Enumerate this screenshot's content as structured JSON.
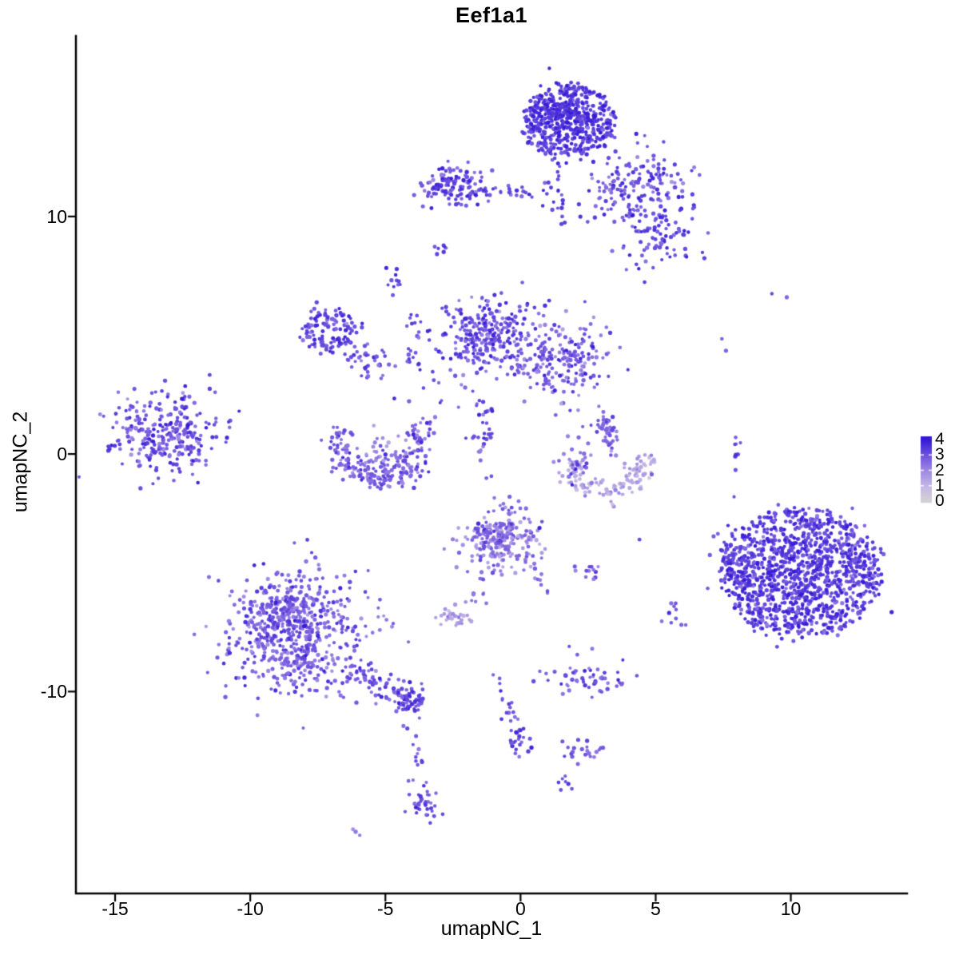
{
  "chart_data": {
    "type": "scatter",
    "title": "Eef1a1",
    "xlabel": "umapNC_1",
    "ylabel": "umapNC_2",
    "xlim": [
      -16.45,
      14.3
    ],
    "ylim": [
      -18.5,
      17.6
    ],
    "grid": false,
    "x_ticks": [
      {
        "value": -15,
        "label": "-15"
      },
      {
        "value": -10,
        "label": "-10"
      },
      {
        "value": -5,
        "label": "-5"
      },
      {
        "value": 0,
        "label": "0"
      },
      {
        "value": 5,
        "label": "5"
      },
      {
        "value": 10,
        "label": "10"
      }
    ],
    "y_ticks": [
      {
        "value": 10,
        "label": "10"
      },
      {
        "value": 0,
        "label": "0"
      },
      {
        "value": -10,
        "label": "-10"
      }
    ],
    "legend": {
      "position": "right",
      "labels": [
        "4",
        "3",
        "2",
        "1",
        "0"
      ],
      "values": [
        4,
        3,
        2,
        1,
        0
      ],
      "description": "expression colorbar, light grey (0) to blue (4)"
    },
    "palette": {
      "low": "#d3d3d3",
      "high": "#3519d6",
      "stops": [
        "#d3d3d3",
        "#c3b7e4",
        "#9f88e2",
        "#6f52de",
        "#3519d6"
      ]
    },
    "point_radius_px": 2.3,
    "clusters": [
      {
        "name": "top-main",
        "type": "disc",
        "cx": 1.8,
        "cy": 14.0,
        "rx": 1.7,
        "ry": 1.55,
        "n": 420,
        "e": 3.5,
        "esd": 0.45
      },
      {
        "name": "top-main-core",
        "type": "gauss",
        "cx": 1.7,
        "cy": 14.2,
        "sx": 0.7,
        "sy": 0.6,
        "n": 150,
        "e": 3.7,
        "esd": 0.35
      },
      {
        "name": "top-left-arm",
        "type": "gauss",
        "cx": -2.4,
        "cy": 11.3,
        "sx": 0.62,
        "sy": 0.4,
        "n": 120,
        "e": 3.3,
        "esd": 0.5
      },
      {
        "name": "top-arm-chain",
        "type": "path",
        "pts": [
          [
            -1.7,
            11.05
          ],
          [
            0.3,
            11.0
          ]
        ],
        "jitter": 0.15,
        "n": 26,
        "e": 3.3,
        "esd": 0.4
      },
      {
        "name": "top-stem",
        "type": "path",
        "pts": [
          [
            1.35,
            12.5
          ],
          [
            1.1,
            10.6
          ],
          [
            1.3,
            9.6
          ]
        ],
        "jitter": 0.22,
        "n": 26,
        "e": 3.4,
        "esd": 0.4
      },
      {
        "name": "top-right-spray",
        "type": "gauss",
        "cx": 4.3,
        "cy": 11.3,
        "sx": 1.05,
        "sy": 0.8,
        "n": 150,
        "e": 3.2,
        "esd": 0.55
      },
      {
        "name": "spray-lower",
        "type": "gauss",
        "cx": 5.3,
        "cy": 9.1,
        "sx": 0.6,
        "sy": 0.75,
        "n": 70,
        "e": 3.3,
        "esd": 0.5
      },
      {
        "name": "spray-bridge",
        "type": "path",
        "pts": [
          [
            3.2,
            10.8
          ],
          [
            5.2,
            8.9
          ]
        ],
        "jitter": 0.55,
        "n": 30,
        "e": 3.1,
        "esd": 0.5
      },
      {
        "name": "upper-pair",
        "type": "gauss",
        "cx": -2.85,
        "cy": 8.6,
        "sx": 0.28,
        "sy": 0.12,
        "n": 7,
        "e": 3.3,
        "esd": 0.3
      },
      {
        "name": "small-clump",
        "type": "gauss",
        "cx": -4.7,
        "cy": 7.2,
        "sx": 0.2,
        "sy": 0.3,
        "n": 11,
        "e": 3.4,
        "esd": 0.3
      },
      {
        "name": "trail-down",
        "type": "path",
        "pts": [
          [
            -4.3,
            6.2
          ],
          [
            -3.4,
            4.6
          ]
        ],
        "jitter": 0.18,
        "n": 13,
        "e": 3.2,
        "esd": 0.4
      },
      {
        "name": "ring",
        "type": "ring",
        "cx": -7.1,
        "cy": 5.25,
        "rx": 0.78,
        "ry": 0.72,
        "rw": 0.2,
        "a0": 0,
        "a1": 360,
        "n": 100,
        "e": 3.4,
        "esd": 0.45
      },
      {
        "name": "ring-fill",
        "type": "gauss",
        "cx": -7.2,
        "cy": 5.3,
        "sx": 0.35,
        "sy": 0.3,
        "n": 14,
        "e": 3.2,
        "esd": 0.4
      },
      {
        "name": "ring-chain",
        "type": "path",
        "pts": [
          [
            -6.35,
            4.35
          ],
          [
            -4.7,
            3.5
          ]
        ],
        "jitter": 0.3,
        "n": 24,
        "e": 3.1,
        "esd": 0.45
      },
      {
        "name": "ring-chain-knot",
        "type": "gauss",
        "cx": -5.9,
        "cy": 3.95,
        "sx": 0.3,
        "sy": 0.3,
        "n": 18,
        "e": 3.2,
        "esd": 0.4
      },
      {
        "name": "mid-left-sparse",
        "type": "gauss",
        "cx": -3.0,
        "cy": 3.3,
        "sx": 0.8,
        "sy": 1.1,
        "n": 22,
        "e": 3.0,
        "esd": 0.5
      },
      {
        "name": "v-strip",
        "type": "path",
        "pts": [
          [
            -4.05,
            4.6
          ],
          [
            -3.95,
            3.5
          ]
        ],
        "jitter": 0.1,
        "n": 9,
        "e": 3.3,
        "esd": 0.3
      },
      {
        "name": "mid-blob",
        "type": "gauss",
        "cx": -1.1,
        "cy": 5.0,
        "sx": 0.85,
        "sy": 0.8,
        "n": 270,
        "e": 3.1,
        "esd": 0.55
      },
      {
        "name": "mid-arm",
        "type": "path",
        "pts": [
          [
            -0.3,
            3.9
          ],
          [
            1.4,
            2.8
          ]
        ],
        "jitter": 0.3,
        "n": 34,
        "e": 2.9,
        "esd": 0.5
      },
      {
        "name": "mid-right-blob",
        "type": "gauss",
        "cx": 1.9,
        "cy": 4.0,
        "sx": 0.72,
        "sy": 0.85,
        "n": 150,
        "e": 2.9,
        "esd": 0.6
      },
      {
        "name": "mid-connector",
        "type": "path",
        "pts": [
          [
            0.2,
            4.5
          ],
          [
            1.2,
            4.2
          ]
        ],
        "jitter": 0.3,
        "n": 16,
        "e": 3.0,
        "esd": 0.5
      },
      {
        "name": "mid-trail-down",
        "type": "path",
        "pts": [
          [
            -1.55,
            2.8
          ],
          [
            -1.3,
            0.9
          ]
        ],
        "jitter": 0.16,
        "n": 14,
        "e": 3.1,
        "esd": 0.4
      },
      {
        "name": "mid-seg",
        "type": "gauss",
        "cx": -1.35,
        "cy": 0.7,
        "sx": 0.3,
        "sy": 0.12,
        "n": 12,
        "e": 3.3,
        "esd": 0.3
      },
      {
        "name": "mid-seg-trail",
        "type": "path",
        "pts": [
          [
            -1.45,
            0.3
          ],
          [
            -1.0,
            -2.4
          ]
        ],
        "jitter": 0.15,
        "n": 8,
        "e": 2.8,
        "esd": 0.4
      },
      {
        "name": "u-cluster-arc",
        "type": "ring",
        "cx": -5.15,
        "cy": 0.35,
        "rx": 1.55,
        "ry": 1.35,
        "rw": 0.3,
        "a0": 150,
        "a1": 400,
        "n": 160,
        "e": 3.0,
        "esd": 0.55
      },
      {
        "name": "u-cluster-bottom",
        "type": "gauss",
        "cx": -5.2,
        "cy": -0.6,
        "sx": 0.8,
        "sy": 0.35,
        "n": 70,
        "e": 2.8,
        "esd": 0.5
      },
      {
        "name": "u-cluster-inner",
        "type": "gauss",
        "cx": -5.1,
        "cy": 0.2,
        "sx": 0.45,
        "sy": 0.4,
        "n": 22,
        "e": 2.2,
        "esd": 0.5
      },
      {
        "name": "left-cluster",
        "type": "gauss",
        "cx": -13.3,
        "cy": 0.9,
        "sx": 0.95,
        "sy": 0.9,
        "n": 250,
        "e": 3.2,
        "esd": 0.55
      },
      {
        "name": "left-cluster-edge",
        "type": "gauss",
        "cx": -12.3,
        "cy": 0.6,
        "sx": 0.45,
        "sy": 0.7,
        "n": 28,
        "e": 3.0,
        "esd": 0.5
      },
      {
        "name": "left-outliers",
        "type": "points",
        "pts": [
          [
            -11.5,
            2.75
          ],
          [
            -11.3,
            2.6
          ],
          [
            -10.8,
            1.35
          ],
          [
            -11.9,
            0.15
          ],
          [
            -12.0,
            -0.25
          ],
          [
            -12.6,
            -0.75
          ],
          [
            -13.6,
            -1.25
          ],
          [
            -10.9,
            0.5
          ]
        ],
        "e": 3.0,
        "esd": 0.4
      },
      {
        "name": "crescent-light",
        "type": "ring",
        "cx": 3.2,
        "cy": -0.45,
        "rx": 1.35,
        "ry": 1.15,
        "rw": 0.28,
        "a0": 170,
        "a1": 380,
        "n": 130,
        "e": 1.4,
        "esd": 0.5
      },
      {
        "name": "crescent-left-tip",
        "type": "gauss",
        "cx": 2.1,
        "cy": -0.5,
        "sx": 0.3,
        "sy": 0.35,
        "n": 18,
        "e": 2.7,
        "esd": 0.5
      },
      {
        "name": "crescent-strip",
        "type": "path",
        "pts": [
          [
            3.15,
            1.5
          ],
          [
            3.4,
            0.1
          ]
        ],
        "jitter": 0.17,
        "n": 30,
        "e": 2.7,
        "esd": 0.5
      },
      {
        "name": "crescent-strip-top",
        "type": "gauss",
        "cx": 3.1,
        "cy": 1.35,
        "sx": 0.25,
        "sy": 0.3,
        "n": 14,
        "e": 2.9,
        "esd": 0.4
      },
      {
        "name": "crescent-left-dots",
        "type": "points",
        "pts": [
          [
            2.3,
            1.15
          ],
          [
            2.15,
            0.7
          ],
          [
            1.75,
            0.75
          ],
          [
            1.9,
            0.2
          ],
          [
            2.5,
            0.45
          ],
          [
            2.6,
            -0.05
          ],
          [
            1.6,
            0.0
          ]
        ],
        "e": 2.5,
        "esd": 0.4
      },
      {
        "name": "big-right",
        "type": "disc",
        "cx": 10.4,
        "cy": -5.0,
        "rx": 2.95,
        "ry": 2.7,
        "n": 980,
        "e": 3.4,
        "esd": 0.5
      },
      {
        "name": "big-right-core",
        "type": "gauss",
        "cx": 10.5,
        "cy": -5.2,
        "sx": 1.2,
        "sy": 1.1,
        "n": 260,
        "e": 3.5,
        "esd": 0.4
      },
      {
        "name": "big-right-arm",
        "type": "gauss",
        "cx": 7.85,
        "cy": -4.5,
        "sx": 0.4,
        "sy": 0.6,
        "n": 45,
        "e": 3.3,
        "esd": 0.4
      },
      {
        "name": "right-strip",
        "type": "path",
        "pts": [
          [
            8.1,
            0.75
          ],
          [
            7.85,
            -0.7
          ]
        ],
        "jitter": 0.1,
        "n": 9,
        "e": 3.2,
        "esd": 0.4
      },
      {
        "name": "right-dots",
        "type": "points",
        "pts": [
          [
            7.9,
            -1.8
          ],
          [
            9.3,
            6.75
          ],
          [
            9.85,
            6.6
          ],
          [
            7.45,
            4.85
          ],
          [
            7.6,
            4.35
          ],
          [
            4.4,
            -3.6
          ]
        ],
        "e": 3.0,
        "esd": 0.4
      },
      {
        "name": "mid-low",
        "type": "gauss",
        "cx": -0.7,
        "cy": -3.6,
        "sx": 0.75,
        "sy": 0.65,
        "n": 200,
        "e": 2.3,
        "esd": 0.65
      },
      {
        "name": "mid-low-dark-edge",
        "type": "gauss",
        "cx": -1.0,
        "cy": -3.3,
        "sx": 0.4,
        "sy": 0.4,
        "n": 40,
        "e": 2.9,
        "esd": 0.4
      },
      {
        "name": "mid-low-right-trail",
        "type": "path",
        "pts": [
          [
            0.45,
            -4.4
          ],
          [
            1.0,
            -5.9
          ]
        ],
        "jitter": 0.12,
        "n": 10,
        "e": 2.7,
        "esd": 0.4
      },
      {
        "name": "mid-low-stem",
        "type": "path",
        "pts": [
          [
            -1.2,
            -4.6
          ],
          [
            -1.8,
            -6.3
          ]
        ],
        "jitter": 0.15,
        "n": 13,
        "e": 2.8,
        "esd": 0.4
      },
      {
        "name": "lavender-clump",
        "type": "gauss",
        "cx": -2.35,
        "cy": -6.9,
        "sx": 0.33,
        "sy": 0.26,
        "n": 32,
        "e": 1.7,
        "esd": 0.45
      },
      {
        "name": "pair-clump-right",
        "type": "gauss",
        "cx": 2.6,
        "cy": -4.95,
        "sx": 0.38,
        "sy": 0.2,
        "n": 12,
        "e": 3.0,
        "esd": 0.4
      },
      {
        "name": "small-right-clump",
        "type": "gauss",
        "cx": 5.7,
        "cy": -6.9,
        "sx": 0.28,
        "sy": 0.28,
        "n": 10,
        "e": 2.9,
        "esd": 0.4
      },
      {
        "name": "bottom-left",
        "type": "gauss",
        "cx": -8.35,
        "cy": -7.6,
        "sx": 1.3,
        "sy": 1.3,
        "n": 560,
        "e": 2.9,
        "esd": 0.6
      },
      {
        "name": "bottom-left-top",
        "type": "gauss",
        "cx": -8.6,
        "cy": -6.3,
        "sx": 0.7,
        "sy": 0.5,
        "n": 80,
        "e": 3.0,
        "esd": 0.5
      },
      {
        "name": "bl-wing",
        "type": "path",
        "pts": [
          [
            -6.4,
            -8.9
          ],
          [
            -4.8,
            -10.1
          ]
        ],
        "jitter": 0.35,
        "n": 55,
        "e": 3.0,
        "esd": 0.5
      },
      {
        "name": "bl-knot",
        "type": "gauss",
        "cx": -4.25,
        "cy": -10.3,
        "sx": 0.42,
        "sy": 0.35,
        "n": 65,
        "e": 3.2,
        "esd": 0.4
      },
      {
        "name": "bl-trail",
        "type": "path",
        "pts": [
          [
            -4.15,
            -11.2
          ],
          [
            -3.7,
            -13.2
          ]
        ],
        "jitter": 0.13,
        "n": 11,
        "e": 3.1,
        "esd": 0.4
      },
      {
        "name": "bl-lower-clump",
        "type": "gauss",
        "cx": -3.5,
        "cy": -14.6,
        "sx": 0.33,
        "sy": 0.45,
        "n": 38,
        "e": 3.1,
        "esd": 0.4
      },
      {
        "name": "bl-pair",
        "type": "points",
        "pts": [
          [
            -6.1,
            -15.9
          ],
          [
            -5.95,
            -16.05
          ],
          [
            -6.2,
            -15.8
          ]
        ],
        "e": 2.0,
        "esd": 0.3
      },
      {
        "name": "curve-trail",
        "type": "path",
        "pts": [
          [
            -0.95,
            -9.0
          ],
          [
            -0.4,
            -10.6
          ],
          [
            -0.05,
            -11.9
          ]
        ],
        "jitter": 0.12,
        "n": 20,
        "e": 3.0,
        "esd": 0.4
      },
      {
        "name": "curve-end",
        "type": "gauss",
        "cx": -0.1,
        "cy": -12.1,
        "sx": 0.28,
        "sy": 0.3,
        "n": 22,
        "e": 3.2,
        "esd": 0.4
      },
      {
        "name": "tiny-pair-bottom",
        "type": "gauss",
        "cx": 1.65,
        "cy": -13.8,
        "sx": 0.18,
        "sy": 0.14,
        "n": 7,
        "e": 3.2,
        "esd": 0.3
      },
      {
        "name": "band",
        "type": "gauss",
        "cx": 2.35,
        "cy": -9.5,
        "sx": 0.75,
        "sy": 0.3,
        "n": 55,
        "e": 3.1,
        "esd": 0.45
      },
      {
        "name": "band-dots",
        "type": "points",
        "pts": [
          [
            1.8,
            -8.1
          ],
          [
            2.1,
            -8.45
          ],
          [
            2.65,
            -8.2
          ]
        ],
        "e": 3.0,
        "esd": 0.3
      },
      {
        "name": "low-clump",
        "type": "gauss",
        "cx": 2.4,
        "cy": -12.5,
        "sx": 0.4,
        "sy": 0.26,
        "n": 20,
        "e": 3.0,
        "esd": 0.45
      },
      {
        "name": "low-clump-dot",
        "type": "points",
        "pts": [
          [
            1.55,
            -12.1
          ]
        ],
        "e": 3.1,
        "esd": 0
      }
    ]
  }
}
